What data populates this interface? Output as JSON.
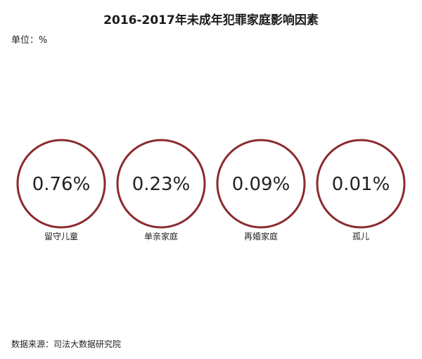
{
  "chart_data": {
    "type": "table",
    "title": "2016-2017年未成年犯罪家庭影响因素",
    "unit_label": "单位：%",
    "source": "数据来源：司法大数据研究院",
    "accent_color": "#8b2a2e",
    "items": [
      {
        "label": "留守儿童",
        "value": 0.76,
        "display": "0.76%"
      },
      {
        "label": "单亲家庭",
        "value": 0.23,
        "display": "0.23%"
      },
      {
        "label": "再婚家庭",
        "value": 0.09,
        "display": "0.09%"
      },
      {
        "label": "孤儿",
        "value": 0.01,
        "display": "0.01%"
      }
    ]
  }
}
